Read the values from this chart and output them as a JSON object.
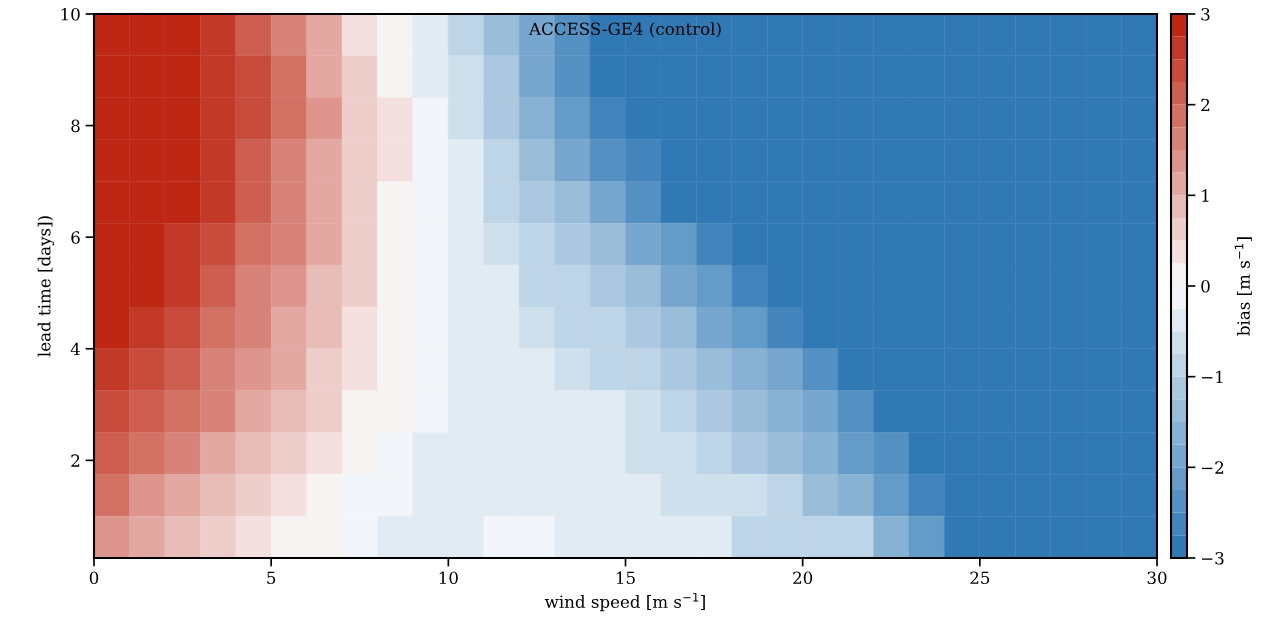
{
  "chart_data": {
    "type": "heatmap",
    "title": "ACCESS-GE4 (control)",
    "xlabel": "wind speed [m s$^{−1}$]",
    "ylabel": "lead time [days])",
    "clabel": "bias [m s$^{−1}$]",
    "x": [
      0.5,
      1.5,
      2.5,
      3.5,
      4.5,
      5.5,
      6.5,
      7.5,
      8.5,
      9.5,
      10.5,
      11.5,
      12.5,
      13.5,
      14.5,
      15.5,
      16.5,
      17.5,
      18.5,
      19.5,
      20.5,
      21.5,
      22.5,
      23.5,
      24.5,
      25.5,
      26.5,
      27.5,
      28.5,
      29.5
    ],
    "y": [
      9.625,
      8.875,
      8.125,
      7.375,
      6.625,
      5.875,
      5.125,
      4.375,
      3.625,
      2.875,
      2.125,
      1.375,
      0.625
    ],
    "cells": [
      [
        2.9,
        2.9,
        2.8,
        2.5,
        2.1,
        1.5,
        1.0,
        0.4,
        0.0,
        -0.3,
        -0.8,
        -1.3,
        -1.9,
        -2.5,
        -2.9,
        -2.9,
        -2.9,
        -2.9,
        -2.9,
        -2.9,
        -2.9,
        -2.9,
        -2.9,
        -2.9,
        -2.9,
        -2.9,
        -2.9,
        -2.9,
        -2.9,
        -2.9
      ],
      [
        2.9,
        2.9,
        2.9,
        2.7,
        2.3,
        1.8,
        1.2,
        0.6,
        0.2,
        -0.3,
        -0.7,
        -1.2,
        -1.8,
        -2.4,
        -2.9,
        -2.9,
        -2.9,
        -2.9,
        -2.9,
        -2.9,
        -2.9,
        -2.9,
        -2.9,
        -2.9,
        -2.9,
        -2.9,
        -2.9,
        -2.9,
        -2.9,
        -2.9
      ],
      [
        2.9,
        2.9,
        2.9,
        2.7,
        2.3,
        1.8,
        1.3,
        0.7,
        0.3,
        -0.2,
        -0.6,
        -1.1,
        -1.6,
        -2.2,
        -2.7,
        -2.9,
        -2.9,
        -2.9,
        -2.9,
        -2.9,
        -2.9,
        -2.9,
        -2.9,
        -2.9,
        -2.9,
        -2.9,
        -2.9,
        -2.9,
        -2.9,
        -2.9
      ],
      [
        2.9,
        2.9,
        2.9,
        2.6,
        2.2,
        1.7,
        1.2,
        0.7,
        0.3,
        -0.2,
        -0.5,
        -0.9,
        -1.3,
        -1.8,
        -2.3,
        -2.7,
        -2.9,
        -2.9,
        -2.9,
        -2.9,
        -2.9,
        -2.9,
        -2.9,
        -2.9,
        -2.9,
        -2.9,
        -2.9,
        -2.9,
        -2.9,
        -2.9
      ],
      [
        2.9,
        2.9,
        2.8,
        2.5,
        2.1,
        1.6,
        1.1,
        0.7,
        0.2,
        -0.1,
        -0.4,
        -0.8,
        -1.1,
        -1.5,
        -1.9,
        -2.3,
        -2.8,
        -2.9,
        -2.9,
        -2.9,
        -2.9,
        -2.9,
        -2.9,
        -2.9,
        -2.9,
        -2.9,
        -2.9,
        -2.9,
        -2.9,
        -2.9
      ],
      [
        2.9,
        2.9,
        2.7,
        2.3,
        1.9,
        1.5,
        1.0,
        0.6,
        0.2,
        -0.1,
        -0.3,
        -0.6,
        -0.9,
        -1.2,
        -1.5,
        -1.8,
        -2.2,
        -2.6,
        -2.9,
        -2.9,
        -2.9,
        -2.9,
        -2.9,
        -2.9,
        -2.9,
        -2.9,
        -2.9,
        -2.9,
        -2.9,
        -2.9
      ],
      [
        2.9,
        2.8,
        2.5,
        2.1,
        1.7,
        1.3,
        0.9,
        0.5,
        0.2,
        -0.1,
        -0.3,
        -0.5,
        -0.8,
        -1.0,
        -1.2,
        -1.5,
        -1.8,
        -2.2,
        -2.6,
        -2.9,
        -2.9,
        -2.9,
        -2.9,
        -2.9,
        -2.9,
        -2.9,
        -2.9,
        -2.9,
        -2.9,
        -2.9
      ],
      [
        2.8,
        2.6,
        2.3,
        1.9,
        1.6,
        1.2,
        0.8,
        0.4,
        0.1,
        -0.1,
        -0.3,
        -0.4,
        -0.6,
        -0.8,
        -1.0,
        -1.2,
        -1.5,
        -1.8,
        -2.2,
        -2.6,
        -2.9,
        -2.9,
        -2.9,
        -2.9,
        -2.9,
        -2.9,
        -2.9,
        -2.9,
        -2.9,
        -2.9
      ],
      [
        2.6,
        2.4,
        2.1,
        1.7,
        1.4,
        1.0,
        0.6,
        0.3,
        0.1,
        -0.1,
        -0.3,
        -0.3,
        -0.5,
        -0.6,
        -0.8,
        -1.0,
        -1.2,
        -1.4,
        -1.7,
        -2.0,
        -2.4,
        -2.8,
        -2.9,
        -2.9,
        -2.9,
        -2.9,
        -2.9,
        -2.9,
        -2.9,
        -2.9
      ],
      [
        2.4,
        2.2,
        1.9,
        1.5,
        1.2,
        0.8,
        0.5,
        0.2,
        0.1,
        -0.1,
        -0.3,
        -0.3,
        -0.3,
        -0.5,
        -0.5,
        -0.7,
        -0.9,
        -1.1,
        -1.3,
        -1.6,
        -2.0,
        -2.4,
        -2.8,
        -2.9,
        -2.9,
        -2.9,
        -2.9,
        -2.9,
        -2.9,
        -2.9
      ],
      [
        2.1,
        1.9,
        1.6,
        1.2,
        0.9,
        0.5,
        0.3,
        0.1,
        -0.1,
        -0.3,
        -0.3,
        -0.3,
        -0.3,
        -0.5,
        -0.5,
        -0.7,
        -0.7,
        -0.9,
        -1.1,
        -1.4,
        -1.7,
        -2.1,
        -2.5,
        -2.9,
        -2.9,
        -2.9,
        -2.9,
        -2.9,
        -2.9,
        -2.9
      ],
      [
        1.75,
        1.4,
        1.1,
        0.8,
        0.6,
        0.3,
        0.1,
        -0.1,
        -0.1,
        -0.3,
        -0.3,
        -0.3,
        -0.3,
        -0.3,
        -0.3,
        -0.5,
        -0.7,
        -0.7,
        -0.7,
        -1.0,
        -1.3,
        -1.7,
        -2.1,
        -2.6,
        -2.9,
        -2.9,
        -2.9,
        -2.9,
        -2.9,
        -2.9
      ],
      [
        1.4,
        1.2,
        0.9,
        0.7,
        0.4,
        0.2,
        0.1,
        -0.2,
        -0.3,
        -0.3,
        -0.3,
        -0.1,
        -0.1,
        -0.4,
        -0.4,
        -0.4,
        -0.4,
        -0.4,
        -0.9,
        -0.9,
        -0.9,
        -0.9,
        -1.6,
        -2.2,
        -2.9,
        -2.9,
        -2.9,
        -2.9,
        -2.9,
        -2.9
      ]
    ],
    "colors": [
      "#3179b5",
      "#fbfcfd",
      "#bd2714"
    ],
    "clim": [
      -3,
      3
    ],
    "cticks": [
      -3,
      -2,
      -1,
      0,
      1,
      2,
      3
    ],
    "xlim": [
      0,
      30
    ],
    "xticks": [
      0,
      5,
      10,
      15,
      20,
      25,
      30
    ],
    "ylim": [
      0.25,
      10
    ],
    "yticks": [
      2,
      4,
      6,
      8,
      10
    ]
  }
}
